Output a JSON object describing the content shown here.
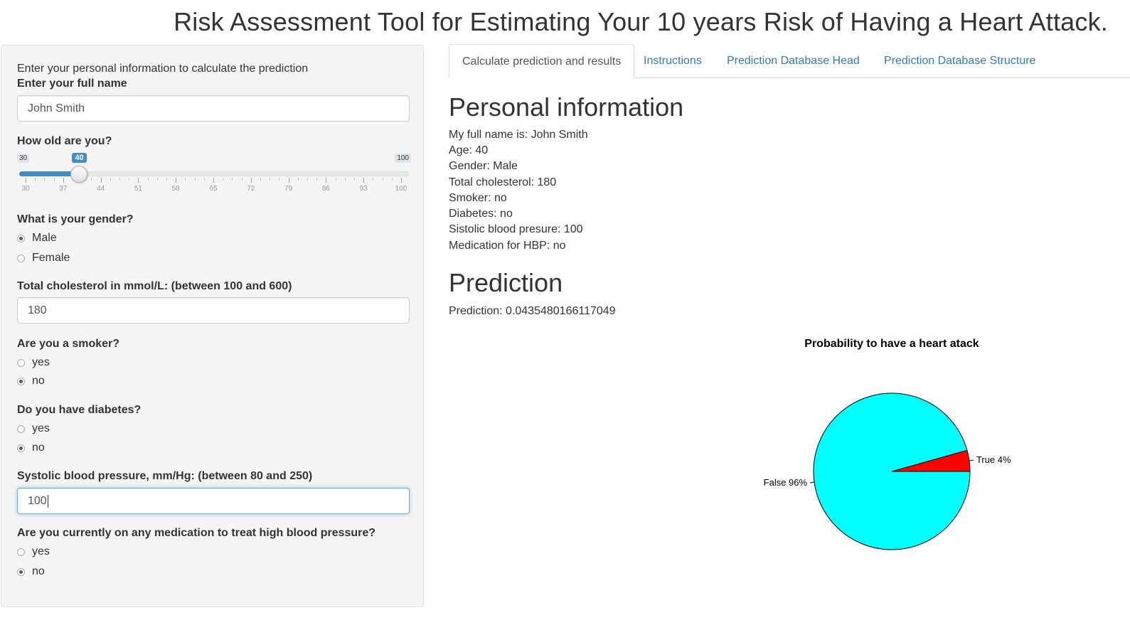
{
  "app_title": "Risk Assessment Tool for Estimating Your 10 years Risk of Having a Heart Attack.",
  "sidebar": {
    "intro": "Enter your personal information to calculate the prediction",
    "name_label": "Enter your full name",
    "name_value": "John Smith",
    "age_label": "How old are you?",
    "age_slider": {
      "min": 30,
      "max": 100,
      "value": 40,
      "min_label": "30",
      "max_label": "100",
      "value_label": "40",
      "tick_labels": [
        "30",
        "37",
        "44",
        "51",
        "58",
        "65",
        "72",
        "79",
        "86",
        "93",
        "100"
      ]
    },
    "gender_label": "What is your gender?",
    "gender_options": [
      "Male",
      "Female"
    ],
    "gender_selected": "Male",
    "chol_label": "Total cholesterol in mmol/L: (between 100 and 600)",
    "chol_value": "180",
    "smoker_label": "Are you a smoker?",
    "smoker_options": [
      "yes",
      "no"
    ],
    "smoker_selected": "no",
    "diabetes_label": "Do you have diabetes?",
    "diabetes_options": [
      "yes",
      "no"
    ],
    "diabetes_selected": "no",
    "bp_label": "Systolic blood pressure, mm/Hg: (between 80 and 250)",
    "bp_value": "100",
    "med_label": "Are you currently on any medication to treat high blood pressure?",
    "med_options": [
      "yes",
      "no"
    ],
    "med_selected": "no"
  },
  "tabs": [
    {
      "label": "Calculate prediction and results",
      "active": true
    },
    {
      "label": "Instructions",
      "active": false
    },
    {
      "label": "Prediction Database Head",
      "active": false
    },
    {
      "label": "Prediction Database Structure",
      "active": false
    }
  ],
  "personal_info": {
    "heading": "Personal information",
    "lines": [
      "My full name is: John Smith",
      "Age: 40",
      "Gender: Male",
      "Total cholesterol: 180",
      "Smoker: no",
      "Diabetes: no",
      "Sistolic blood presure: 100",
      "Medication for HBP: no"
    ]
  },
  "prediction": {
    "heading": "Prediction",
    "text": "Prediction: 0.0435480166117049"
  },
  "colors": {
    "pie_false": "#00ffff",
    "pie_true": "#ff0000",
    "link": "#337ab7",
    "slider_accent": "#428bca"
  },
  "chart_data": {
    "type": "pie",
    "title": "Probability to have a heart atack",
    "slices": [
      {
        "label": "False 96%",
        "value": 0.9564519833882951,
        "color": "#00ffff"
      },
      {
        "label": "True 4%",
        "value": 0.0435480166117049,
        "color": "#ff0000"
      }
    ]
  }
}
